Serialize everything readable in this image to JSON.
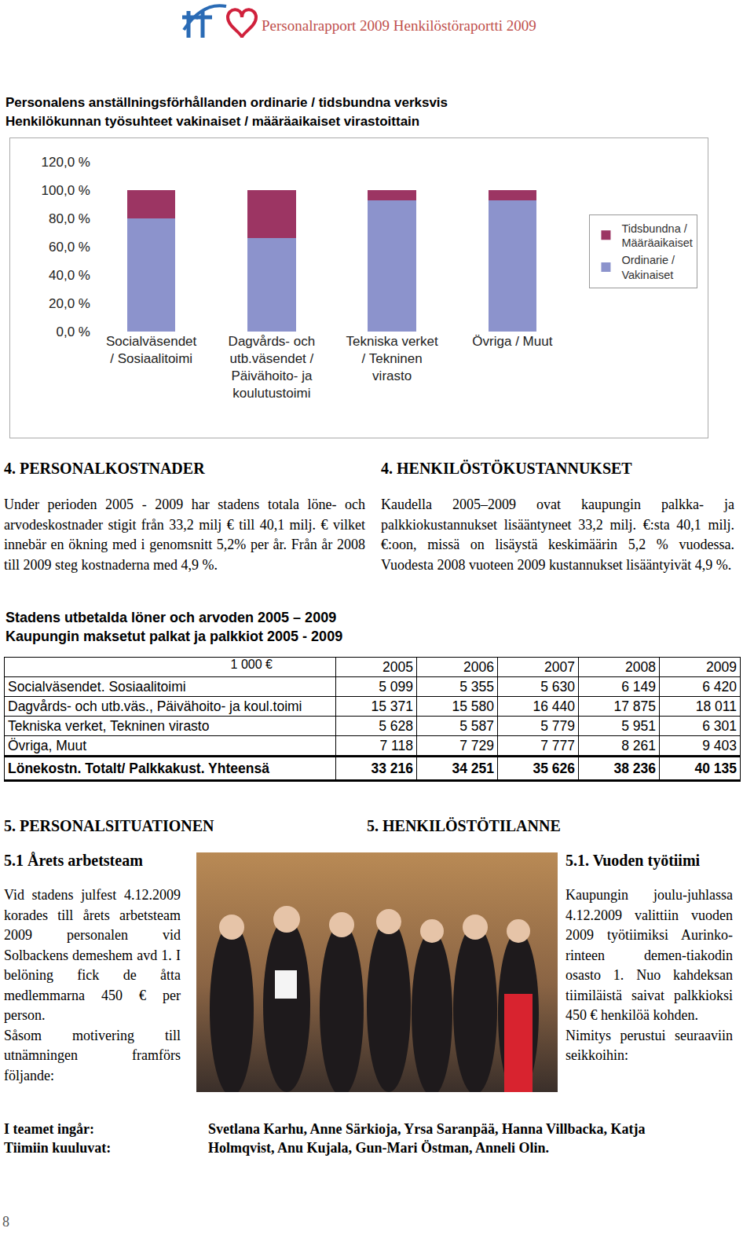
{
  "header": {
    "title": "Personalrapport 2009 Henkilöstöraportti 2009",
    "page": "8"
  },
  "chart_data": {
    "type": "bar",
    "title": [
      "Personalens anställningsförhållanden ordinarie / tidsbundna verksvis",
      "Henkilökunnan työsuhteet vakinaiset / määräaikaiset virastoittain"
    ],
    "categories": [
      "Socialväsendet\n/ Sosiaalitoimi",
      "Dagvårds- och\nutb.väsendet /\nPäivähoito- ja\nkoulutustoimi",
      "Tekniska verket\n/ Tekninen\nvirasto",
      "Övriga / Muut"
    ],
    "series": [
      {
        "name": "Ordinarie /\nVakinaiset",
        "color": "#8c93cc",
        "values": [
          80,
          66,
          93,
          93
        ]
      },
      {
        "name": "Tidsbundna /\nMääräaikaiset",
        "color": "#9c3563",
        "values": [
          20,
          34,
          7,
          7
        ]
      }
    ],
    "stacked": true,
    "ylim": [
      0,
      120
    ],
    "yticks": [
      {
        "value": 0,
        "label": "0,0 %"
      },
      {
        "value": 20,
        "label": "20,0 %"
      },
      {
        "value": 40,
        "label": "40,0 %"
      },
      {
        "value": 60,
        "label": "60,0 %"
      },
      {
        "value": 80,
        "label": "80,0 %"
      },
      {
        "value": 100,
        "label": "100,0 %"
      },
      {
        "value": 120,
        "label": "120,0 %"
      }
    ],
    "grid": false,
    "legend": "right"
  },
  "section4": {
    "sv": {
      "heading": "4. PERSONALKOSTNADER",
      "text": "Under perioden 2005 - 2009 har stadens totala löne- och arvodeskostnader stigit från 33,2 milj € till 40,1 milj. € vilket innebär en ökning med i genomsnitt 5,2% per år. Från år 2008 till 2009 steg kostnaderna med 4,9 %."
    },
    "fi": {
      "heading": "4. HENKILÖSTÖKUSTANNUKSET",
      "text": "Kaudella 2005–2009 ovat kaupungin palkka- ja palkkiokustannukset lisääntyneet 33,2 milj. €:sta 40,1 milj. €:oon, missä on lisäystä keskimäärin 5,2 % vuodessa. Vuodesta 2008 vuoteen 2009 kustannukset lisääntyivät 4,9 %."
    }
  },
  "table": {
    "title": [
      "Stadens utbetalda löner och arvoden 2005 – 2009",
      "Kaupungin maksetut palkat ja palkkiot 2005 - 2009"
    ],
    "header": [
      "1 000 €",
      "2005",
      "2006",
      "2007",
      "2008",
      "2009"
    ],
    "rows": [
      [
        "Socialväsendet. Sosiaalitoimi",
        "5 099",
        "5 355",
        "5 630",
        "6 149",
        "6 420"
      ],
      [
        "Dagvårds- och utb.väs., Päivähoito- ja koul.toimi",
        "15 371",
        "15 580",
        "16 440",
        "17 875",
        "18 011"
      ],
      [
        "Tekniska verket, Tekninen virasto",
        "5 628",
        "5 587",
        "5 779",
        "5 951",
        "6 301"
      ],
      [
        "Övriga, Muut",
        "7 118",
        "7 729",
        "7 777",
        "8 261",
        "9 403"
      ]
    ],
    "total": [
      "Lönekostn. Totalt/ Palkkakust. Yhteensä",
      "33 216",
      "34 251",
      "35 626",
      "38 236",
      "40 135"
    ]
  },
  "section5": {
    "sv": {
      "heading": "5. PERSONALSITUATIONEN",
      "subheading": "5.1 Årets arbetsteam",
      "paragraphs": [
        "Vid stadens julfest 4.12.2009 korades till årets arbetsteam 2009 personalen vid Solbackens demeshem avd 1. I belöning fick de åtta medlemmarna 450 € per person.",
        "Såsom motivering till utnämningen framförs följande:"
      ]
    },
    "fi": {
      "heading": "5. HENKILÖSTÖTILANNE",
      "subheading": "5.1. Vuoden työtiimi",
      "paragraphs": [
        "Kaupungin joulu-juhlassa 4.12.2009 valittiin vuoden 2009 työtiimiksi Aurinko-rinteen demen-tiakodin osasto 1. Nuo kahdeksan tiimiläistä saivat palkkioksi 450 € henkilöä kohden.",
        "Nimitys perustui seuraaviin seikkoihin:"
      ]
    },
    "team": {
      "label": [
        "I teamet ingår:",
        "Tiimiin kuuluvat:"
      ],
      "members": "Svetlana Karhu, Anne Särkioja, Yrsa Saranpää, Hanna Villbacka, Katja Holmqvist, Anu Kujala, Gun-Mari Östman, Anneli Olin."
    }
  }
}
